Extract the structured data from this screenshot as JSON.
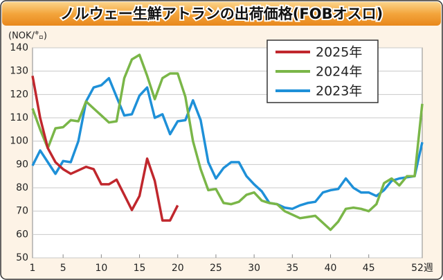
{
  "chart_data": {
    "type": "line",
    "title": "ノルウェー生鮮アトランの出荷価格(FOBオスロ)",
    "y_label": "(NOK/㌔)",
    "x": [
      1,
      2,
      3,
      4,
      5,
      6,
      7,
      8,
      9,
      10,
      11,
      12,
      13,
      14,
      15,
      16,
      17,
      18,
      19,
      20,
      21,
      22,
      23,
      24,
      25,
      26,
      27,
      28,
      29,
      30,
      31,
      32,
      33,
      34,
      35,
      36,
      37,
      38,
      39,
      40,
      41,
      42,
      43,
      44,
      45,
      46,
      47,
      48,
      49,
      50,
      51,
      52
    ],
    "xlim": [
      1,
      52
    ],
    "xticks": [
      1,
      5,
      10,
      15,
      20,
      25,
      30,
      35,
      40,
      45,
      {
        "value": 52,
        "label": "52週"
      }
    ],
    "ylim": [
      50,
      140
    ],
    "yticks": [
      50,
      60,
      70,
      80,
      90,
      100,
      110,
      120,
      130,
      140
    ],
    "grid": true,
    "legend": "upper right",
    "series": [
      {
        "name": "2025年",
        "color": "#c0272d",
        "values": [
          128,
          110,
          97,
          91,
          88,
          86,
          87.5,
          89,
          88,
          81.5,
          81.5,
          83.5,
          77,
          70.5,
          76.5,
          92.5,
          83,
          66,
          66,
          72.5,
          null,
          null,
          null,
          null,
          null,
          null,
          null,
          null,
          null,
          null,
          null,
          null,
          null,
          null,
          null,
          null,
          null,
          null,
          null,
          null,
          null,
          null,
          null,
          null,
          null,
          null,
          null,
          null,
          null,
          null,
          null,
          null
        ]
      },
      {
        "name": "2024年",
        "color": "#7ab648",
        "values": [
          114,
          105,
          97,
          105.5,
          106,
          109,
          108.5,
          117,
          114,
          111,
          108,
          108.5,
          127,
          135,
          137,
          128,
          118,
          127,
          129,
          129,
          119,
          100,
          88,
          79,
          79.5,
          73.5,
          73,
          74,
          77,
          78,
          74.5,
          73.5,
          73,
          70,
          68.5,
          67,
          67.5,
          68,
          65,
          62,
          65.5,
          71,
          71.5,
          71,
          70,
          73,
          82,
          84,
          81,
          85,
          85,
          116
        ]
      },
      {
        "name": "2023年",
        "color": "#1e90d8",
        "values": [
          89.5,
          96,
          91,
          86,
          91.5,
          91,
          100,
          117,
          123,
          124,
          127,
          119,
          111,
          111.5,
          119.5,
          123,
          110,
          111.5,
          103,
          108.5,
          109,
          117.5,
          109,
          91,
          84,
          88.5,
          91,
          91,
          85,
          81.5,
          78.5,
          73.5,
          73,
          71.5,
          71,
          72.5,
          73.5,
          74,
          78,
          79,
          79.5,
          84,
          80,
          78,
          78,
          76.5,
          79,
          83,
          84,
          84.5,
          85,
          99.5
        ]
      }
    ]
  }
}
